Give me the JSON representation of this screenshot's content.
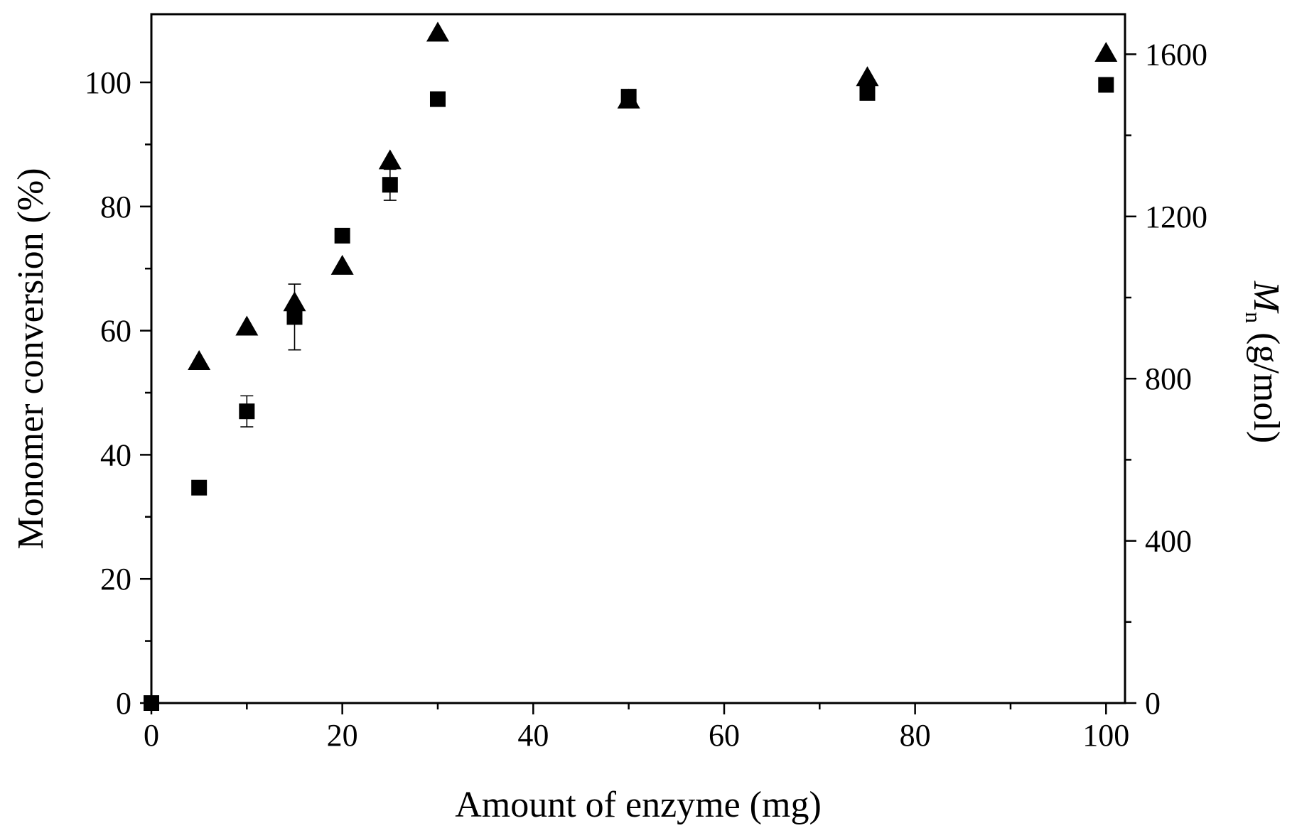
{
  "chart_data": {
    "type": "scatter",
    "xlabel": "Amount of enzyme (mg)",
    "ylabel": "Monomer conversion (%)",
    "y2label_main": "M",
    "y2label_sub": "n",
    "y2label_rest": " (g/mol)",
    "xlim": [
      0,
      105
    ],
    "ylim": [
      0,
      110
    ],
    "y2lim": [
      0,
      1700
    ],
    "xticks": [
      0,
      20,
      40,
      60,
      80,
      100
    ],
    "yticks": [
      0,
      20,
      40,
      60,
      80,
      100
    ],
    "y2ticks": [
      0,
      400,
      800,
      1200,
      1600
    ],
    "grid": false,
    "legend": "none",
    "series": [
      {
        "marker": "square",
        "axis": "left",
        "x": [
          0,
          5,
          10,
          15,
          20,
          25,
          30,
          50,
          75,
          100
        ],
        "y": [
          0,
          34.7,
          47,
          62.2,
          75.3,
          83.5,
          97.3,
          97.7,
          98.3,
          99.6
        ],
        "error": [
          0,
          0.8,
          2.5,
          5.3,
          0.8,
          2.5,
          0,
          0.8,
          0.5,
          0
        ]
      },
      {
        "marker": "triangle",
        "axis": "right",
        "x": [
          5,
          10,
          15,
          20,
          25,
          30,
          50,
          75,
          100
        ],
        "y": [
          840,
          925,
          985,
          1075,
          1335,
          1650,
          1485,
          1540,
          1600
        ]
      }
    ]
  }
}
